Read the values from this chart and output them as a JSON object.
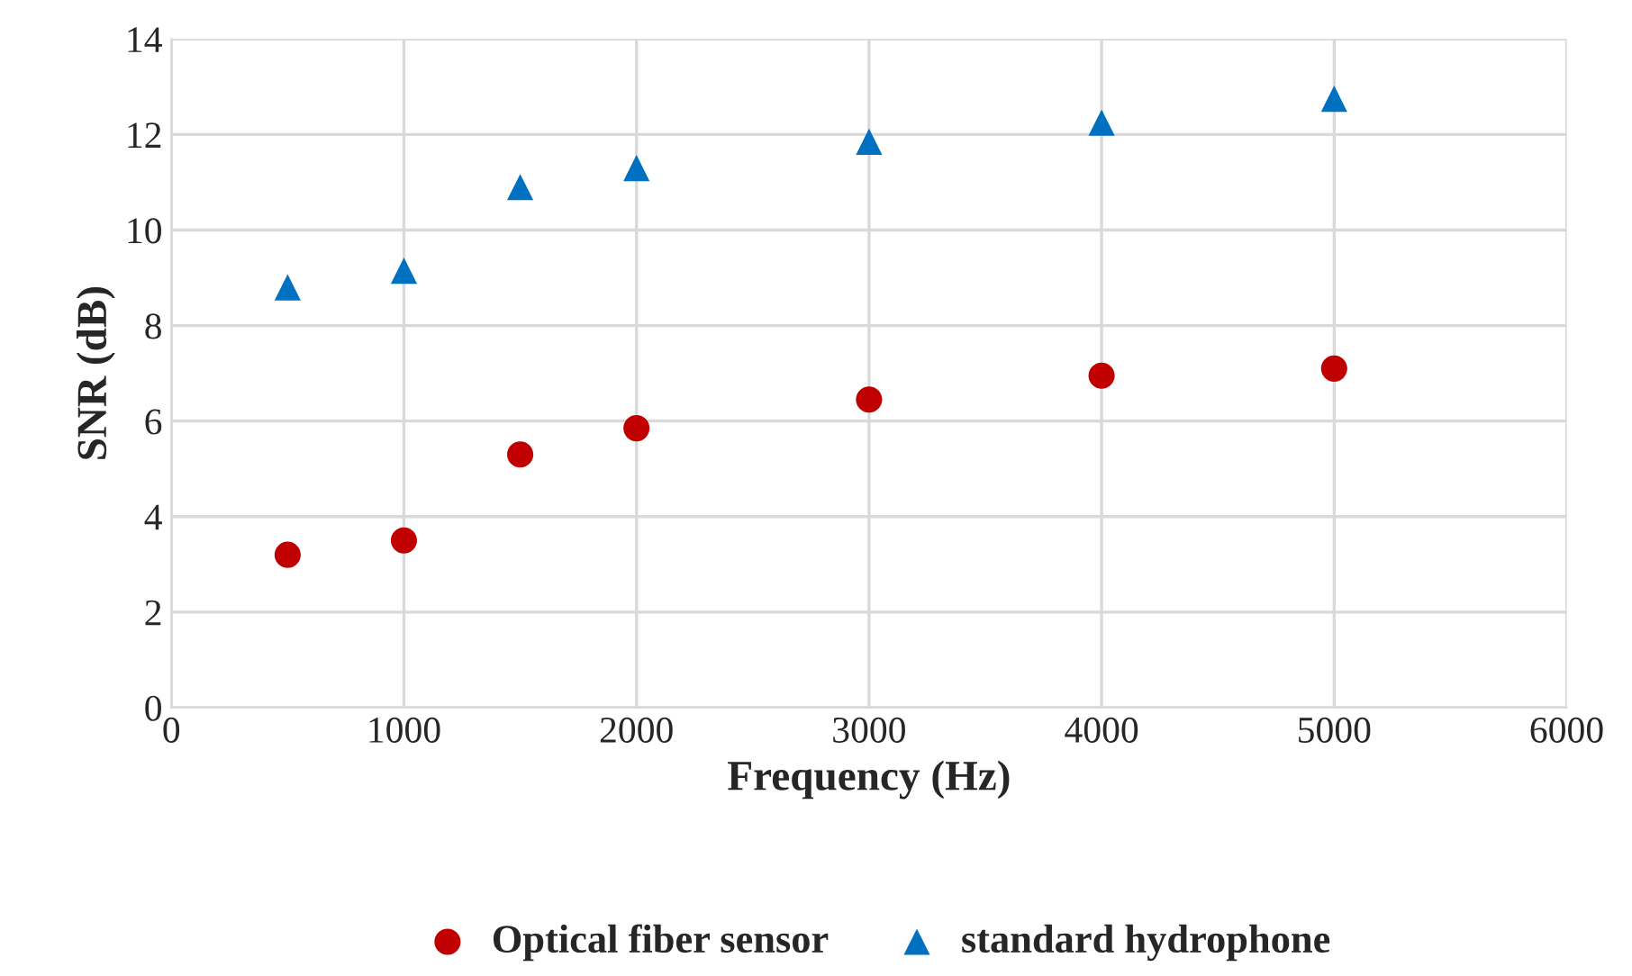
{
  "chart_data": {
    "type": "scatter",
    "xlabel": "Frequency (Hz)",
    "ylabel": "SNR (dB)",
    "x": [
      500,
      1000,
      1500,
      2000,
      3000,
      4000,
      5000
    ],
    "series": [
      {
        "name": "Optical fiber sensor",
        "color": "#c00000",
        "marker": "circle",
        "values": [
          3.2,
          3.5,
          5.3,
          5.85,
          6.45,
          6.95,
          7.1
        ]
      },
      {
        "name": "standard hydrophone",
        "color": "#0070c0",
        "marker": "triangle",
        "values": [
          8.8,
          9.15,
          10.9,
          11.3,
          11.85,
          12.25,
          12.75
        ]
      }
    ],
    "xlim": [
      0,
      6000
    ],
    "xticks": [
      0,
      1000,
      2000,
      3000,
      4000,
      5000,
      6000
    ],
    "ylim": [
      0,
      14
    ],
    "yticks": [
      0,
      2,
      4,
      6,
      8,
      10,
      12,
      14
    ],
    "grid": true,
    "legend": "bottom"
  }
}
